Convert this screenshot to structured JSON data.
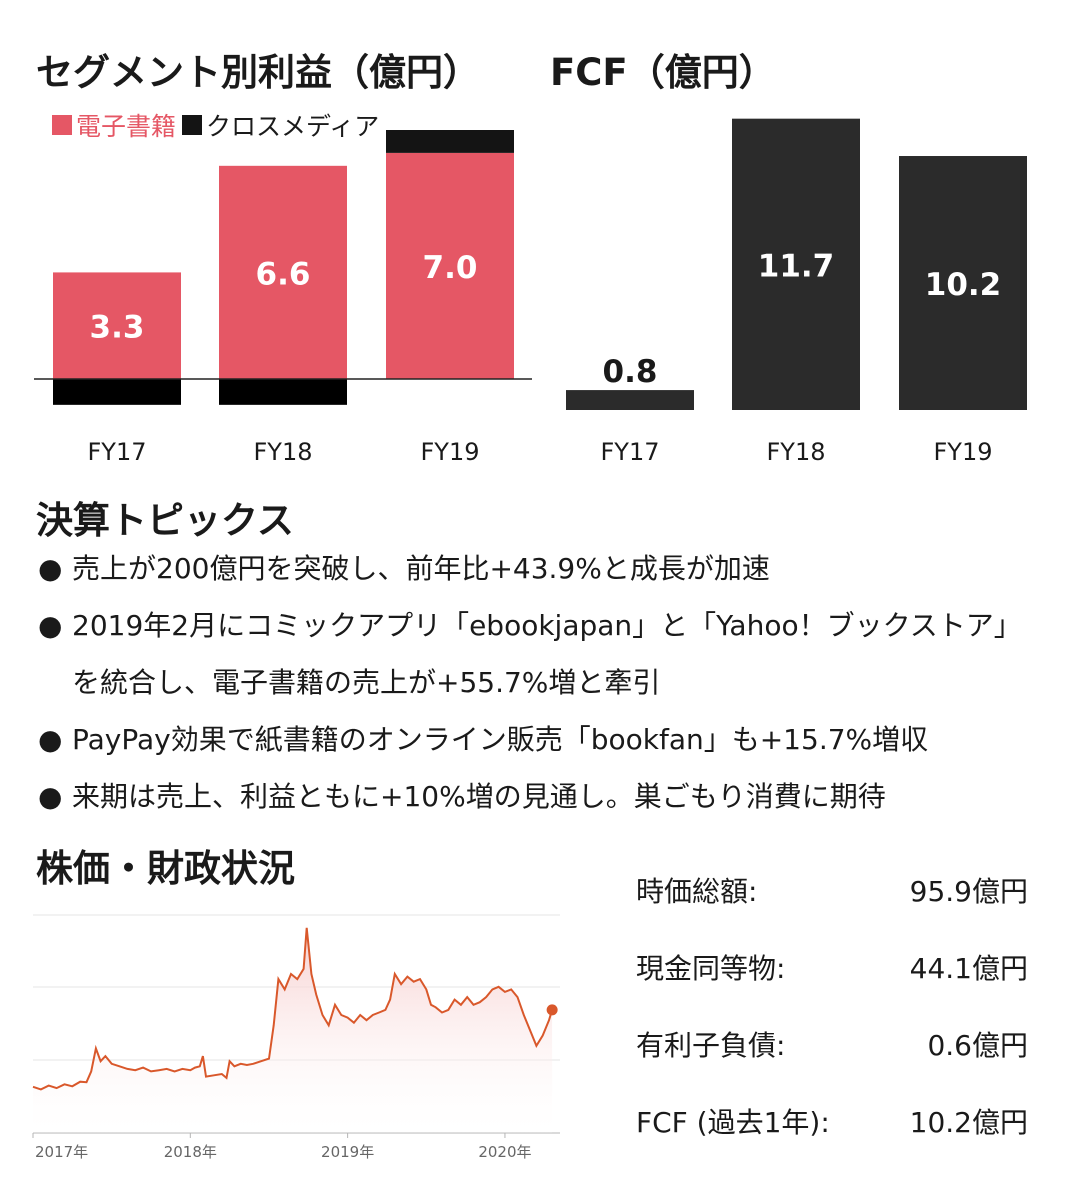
{
  "segment_section": {
    "title": "セグメント別利益（億円）",
    "legend": [
      {
        "label": "電子書籍",
        "color": "#e55765"
      },
      {
        "label": "クロスメディア",
        "color": "#141414"
      }
    ]
  },
  "fcf_section": {
    "title": "FCF（億円）"
  },
  "topics": {
    "title": "決算トピックス",
    "bullet_char": "●",
    "items": [
      "売上が200億円を突破し、前年比+43.9%と成長が加速",
      "2019年2月にコミックアプリ「ebookjapan」と「Yahoo！ブックストア」を統合し、電子書籍の売上が+55.7%増と牽引",
      "PayPay効果で紙書籍のオンライン販売「bookfan」も+15.7%増収",
      "来期は売上、利益ともに+10%増の見通し。巣ごもり消費に期待"
    ]
  },
  "stock_section": {
    "title": "株価・財政状況",
    "metrics": [
      {
        "label": "時価総額:",
        "value": "95.9億円"
      },
      {
        "label": "現金同等物:",
        "value": "44.1億円"
      },
      {
        "label": "有利子負債:",
        "value": "0.6億円"
      },
      {
        "label": "FCF (過去1年):",
        "value": "10.2億円"
      }
    ]
  },
  "chart_data": [
    {
      "type": "bar",
      "stacked": true,
      "title": "セグメント別利益（億円）",
      "categories": [
        "FY17",
        "FY18",
        "FY19"
      ],
      "ylim": [
        -0.8,
        7.9
      ],
      "series": [
        {
          "name": "電子書籍",
          "color": "#e55765",
          "values": [
            3.3,
            6.6,
            7.0
          ],
          "labels": [
            "3.3",
            "6.6",
            "7.0"
          ]
        },
        {
          "name": "クロスメディア",
          "color": "#141414",
          "values": [
            -0.8,
            -0.8,
            0.9
          ]
        }
      ],
      "legend_position": "top-left",
      "grid": false
    },
    {
      "type": "bar",
      "title": "FCF（億円）",
      "categories": [
        "FY17",
        "FY18",
        "FY19"
      ],
      "values": [
        0.8,
        11.7,
        10.2
      ],
      "labels": [
        "0.8",
        "11.7",
        "10.2"
      ],
      "color": "#2b2b2b",
      "ylim": [
        0,
        12
      ],
      "grid": false
    },
    {
      "type": "area",
      "x_tick_labels": [
        "2017年",
        "2018年",
        "2019年",
        "2020年"
      ],
      "x_ticks": [
        2017.0,
        2018.0,
        2019.0,
        2020.0
      ],
      "xlim": [
        2017.0,
        2020.35
      ],
      "ylim": [
        300,
        1150
      ],
      "grid": true,
      "line_color": "#d9582b",
      "points": [
        [
          2017.0,
          480
        ],
        [
          2017.05,
          470
        ],
        [
          2017.1,
          485
        ],
        [
          2017.15,
          475
        ],
        [
          2017.2,
          490
        ],
        [
          2017.25,
          482
        ],
        [
          2017.3,
          500
        ],
        [
          2017.34,
          498
        ],
        [
          2017.37,
          540
        ],
        [
          2017.4,
          630
        ],
        [
          2017.43,
          580
        ],
        [
          2017.46,
          600
        ],
        [
          2017.5,
          570
        ],
        [
          2017.55,
          560
        ],
        [
          2017.6,
          550
        ],
        [
          2017.65,
          545
        ],
        [
          2017.7,
          555
        ],
        [
          2017.75,
          540
        ],
        [
          2017.8,
          545
        ],
        [
          2017.85,
          550
        ],
        [
          2017.9,
          540
        ],
        [
          2017.95,
          550
        ],
        [
          2018.0,
          545
        ],
        [
          2018.03,
          555
        ],
        [
          2018.06,
          560
        ],
        [
          2018.08,
          600
        ],
        [
          2018.1,
          520
        ],
        [
          2018.15,
          525
        ],
        [
          2018.2,
          530
        ],
        [
          2018.23,
          515
        ],
        [
          2018.25,
          580
        ],
        [
          2018.28,
          560
        ],
        [
          2018.32,
          570
        ],
        [
          2018.36,
          565
        ],
        [
          2018.4,
          570
        ],
        [
          2018.45,
          580
        ],
        [
          2018.5,
          590
        ],
        [
          2018.53,
          720
        ],
        [
          2018.56,
          900
        ],
        [
          2018.6,
          860
        ],
        [
          2018.64,
          920
        ],
        [
          2018.68,
          900
        ],
        [
          2018.72,
          940
        ],
        [
          2018.74,
          1100
        ],
        [
          2018.77,
          920
        ],
        [
          2018.8,
          840
        ],
        [
          2018.84,
          760
        ],
        [
          2018.88,
          720
        ],
        [
          2018.92,
          800
        ],
        [
          2018.96,
          760
        ],
        [
          2019.0,
          750
        ],
        [
          2019.04,
          730
        ],
        [
          2019.08,
          760
        ],
        [
          2019.12,
          740
        ],
        [
          2019.16,
          760
        ],
        [
          2019.2,
          770
        ],
        [
          2019.24,
          780
        ],
        [
          2019.27,
          820
        ],
        [
          2019.3,
          920
        ],
        [
          2019.34,
          880
        ],
        [
          2019.38,
          910
        ],
        [
          2019.42,
          890
        ],
        [
          2019.46,
          900
        ],
        [
          2019.5,
          860
        ],
        [
          2019.53,
          800
        ],
        [
          2019.56,
          790
        ],
        [
          2019.6,
          770
        ],
        [
          2019.64,
          780
        ],
        [
          2019.68,
          820
        ],
        [
          2019.72,
          800
        ],
        [
          2019.76,
          830
        ],
        [
          2019.8,
          800
        ],
        [
          2019.84,
          810
        ],
        [
          2019.88,
          830
        ],
        [
          2019.92,
          860
        ],
        [
          2019.96,
          870
        ],
        [
          2020.0,
          850
        ],
        [
          2020.04,
          860
        ],
        [
          2020.08,
          830
        ],
        [
          2020.12,
          760
        ],
        [
          2020.16,
          700
        ],
        [
          2020.2,
          640
        ],
        [
          2020.24,
          680
        ],
        [
          2020.28,
          740
        ],
        [
          2020.3,
          780
        ]
      ]
    }
  ]
}
